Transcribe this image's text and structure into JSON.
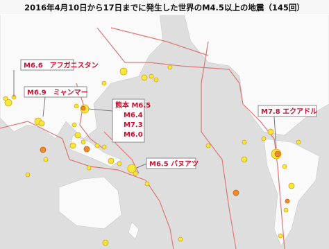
{
  "title": "2016年4月10日から17日までに発生した世界のM4.5以上の地震（145回）",
  "callouts": [
    {
      "lines": [
        "M6.6　アフガニスタン"
      ]
    },
    {
      "lines": [
        "M6.9　ミャンマー"
      ]
    },
    {
      "lines": [
        "熊本 M6.5",
        "M6.4",
        "M7.3",
        "M6.0"
      ]
    },
    {
      "lines": [
        "M7.8 エクアドル"
      ]
    },
    {
      "lines": [
        "M6.5 バヌアツ"
      ]
    }
  ]
}
